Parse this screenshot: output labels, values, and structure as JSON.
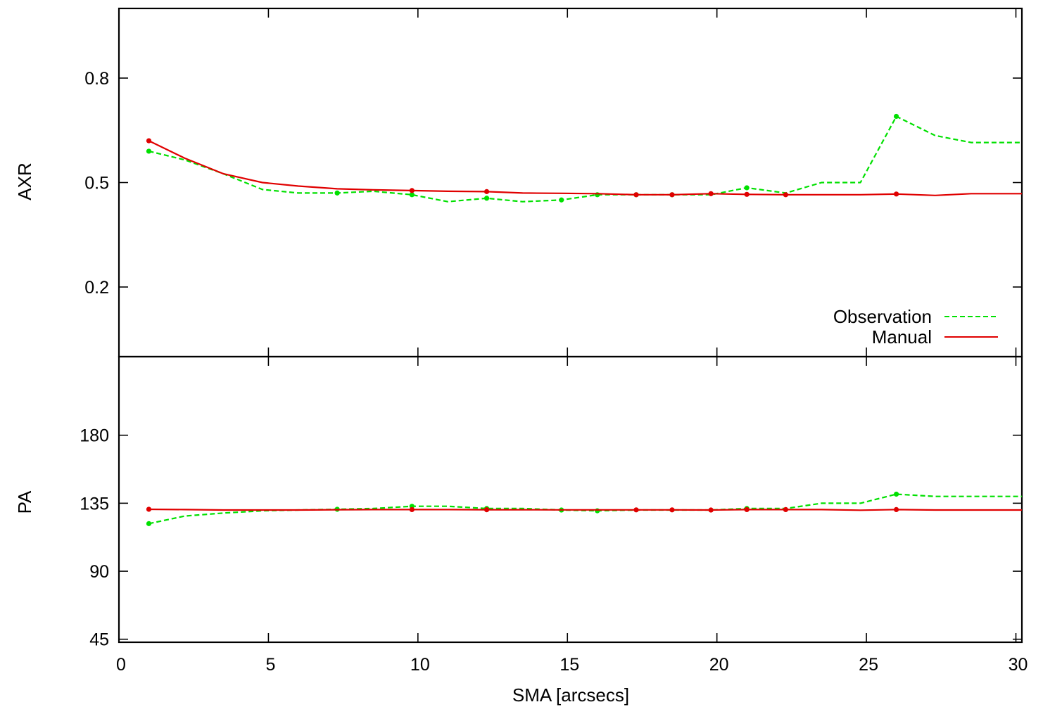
{
  "colors": {
    "observation": "#00e000",
    "manual": "#e00000",
    "frame": "#000000",
    "background": "#ffffff"
  },
  "chart_data": [
    {
      "type": "line",
      "panel": "top",
      "ylabel": "AXR",
      "xlim": [
        0,
        30.2
      ],
      "ylim": [
        0.0,
        1.0
      ],
      "yticks": [
        0.2,
        0.5,
        0.8
      ],
      "ytick_labels": [
        "0.2",
        "0.5",
        "0.8"
      ],
      "grid": false,
      "legend": {
        "position": "bottom-right",
        "entries": [
          "Observation",
          "Manual"
        ]
      },
      "series": [
        {
          "name": "Observation",
          "style": "dashed",
          "x": [
            1.0,
            2.2,
            3.5,
            4.8,
            6.0,
            7.3,
            8.5,
            9.8,
            11.0,
            12.3,
            13.5,
            14.8,
            16.0,
            17.3,
            18.5,
            19.8,
            21.0,
            22.3,
            23.5,
            24.8,
            26.0,
            27.3,
            28.5,
            30.2
          ],
          "y": [
            0.59,
            0.565,
            0.525,
            0.48,
            0.47,
            0.47,
            0.475,
            0.465,
            0.445,
            0.455,
            0.445,
            0.45,
            0.465,
            0.465,
            0.465,
            0.465,
            0.485,
            0.47,
            0.5,
            0.5,
            0.69,
            0.635,
            0.615,
            0.615
          ],
          "markers_x": [
            1.0,
            7.3,
            9.8,
            12.3,
            14.8,
            16.0,
            17.3,
            18.5,
            21.0,
            26.0
          ]
        },
        {
          "name": "Manual",
          "style": "solid",
          "x": [
            1.0,
            2.2,
            3.5,
            4.8,
            6.0,
            7.3,
            8.5,
            9.8,
            11.0,
            12.3,
            13.5,
            14.8,
            16.0,
            17.3,
            18.5,
            19.8,
            21.0,
            22.3,
            23.5,
            24.8,
            26.0,
            27.3,
            28.5,
            30.2
          ],
          "y": [
            0.62,
            0.57,
            0.525,
            0.5,
            0.49,
            0.482,
            0.479,
            0.477,
            0.475,
            0.474,
            0.47,
            0.469,
            0.468,
            0.465,
            0.465,
            0.468,
            0.466,
            0.465,
            0.465,
            0.465,
            0.467,
            0.463,
            0.468,
            0.468
          ],
          "markers_x": [
            1.0,
            9.8,
            12.3,
            17.3,
            18.5,
            19.8,
            21.0,
            22.3,
            26.0
          ]
        }
      ]
    },
    {
      "type": "line",
      "panel": "bottom",
      "xlabel": "SMA [arcsecs]",
      "ylabel": "PA",
      "xlim": [
        0,
        30.2
      ],
      "ylim": [
        43,
        232
      ],
      "xticks": [
        0,
        5,
        10,
        15,
        20,
        25,
        30
      ],
      "xtick_labels": [
        "0",
        "5",
        "10",
        "15",
        "20",
        "25",
        "30"
      ],
      "yticks": [
        45,
        90,
        135,
        180
      ],
      "ytick_labels": [
        "45",
        "90",
        "135",
        "180"
      ],
      "grid": false,
      "series": [
        {
          "name": "Observation",
          "style": "dashed",
          "x": [
            1.0,
            2.2,
            3.5,
            4.8,
            6.0,
            7.3,
            8.5,
            9.8,
            11.0,
            12.3,
            13.5,
            14.8,
            16.0,
            17.3,
            18.5,
            19.8,
            21.0,
            22.3,
            23.5,
            24.8,
            26.0,
            27.3,
            28.5,
            30.2
          ],
          "y": [
            121.5,
            126.5,
            128.5,
            130,
            130.5,
            131,
            131.5,
            133,
            133,
            131.5,
            131.5,
            130.5,
            130,
            130.5,
            130.5,
            130.5,
            131.5,
            131.5,
            135,
            135,
            141,
            139.5,
            139.5,
            139.5
          ],
          "markers_x": [
            1.0,
            7.3,
            9.8,
            12.3,
            14.8,
            16.0,
            21.0,
            26.0
          ]
        },
        {
          "name": "Manual",
          "style": "solid",
          "x": [
            1.0,
            2.2,
            3.5,
            4.8,
            6.0,
            7.3,
            8.5,
            9.8,
            11.0,
            12.3,
            13.5,
            14.8,
            16.0,
            17.3,
            18.5,
            19.8,
            21.0,
            22.3,
            23.5,
            24.8,
            26.0,
            27.3,
            28.5,
            30.2
          ],
          "y": [
            131,
            130.8,
            130.5,
            130.5,
            130.5,
            130.7,
            130.8,
            130.8,
            130.8,
            130.7,
            130.7,
            130.6,
            130.6,
            130.6,
            130.6,
            130.5,
            130.8,
            130.8,
            130.8,
            130.4,
            130.8,
            130.5,
            130.5,
            130.5
          ],
          "markers_x": [
            1.0,
            9.8,
            12.3,
            17.3,
            18.5,
            19.8,
            21.0,
            22.3,
            26.0
          ]
        }
      ]
    }
  ]
}
